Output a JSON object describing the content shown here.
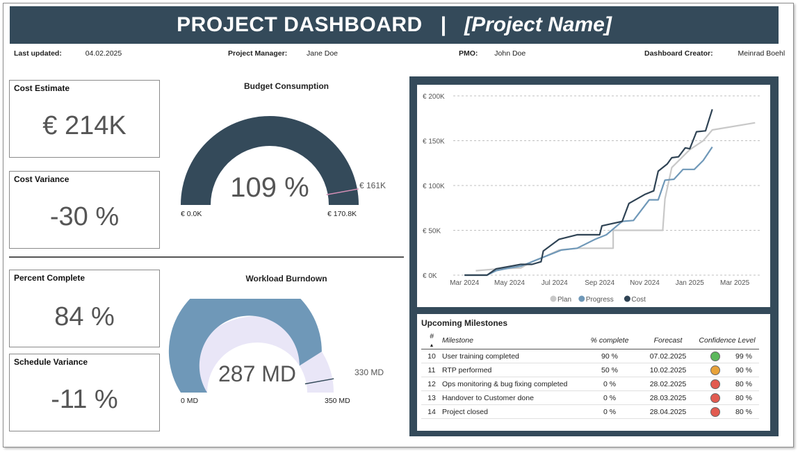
{
  "header": {
    "title": "PROJECT DASHBOARD",
    "separator": "|",
    "project_name": "[Project Name]"
  },
  "meta": {
    "last_updated_label": "Last updated:",
    "last_updated": "04.02.2025",
    "pm_label": "Project Manager:",
    "pm": "Jane Doe",
    "pmo_label": "PMO:",
    "pmo": "John Doe",
    "creator_label": "Dashboard Creator:",
    "creator": "Meinrad Boehl"
  },
  "cards": {
    "cost_estimate": {
      "label": "Cost Estimate",
      "value": "€ 214K"
    },
    "cost_variance": {
      "label": "Cost Variance",
      "value": "-30 %"
    },
    "percent_complete": {
      "label": "Percent Complete",
      "value": "84 %"
    },
    "schedule_variance": {
      "label": "Schedule Variance",
      "value": "-11 %"
    }
  },
  "budget_gauge": {
    "title": "Budget Consumption",
    "value_label": "109 %",
    "min_label": "€ 0.0K",
    "max_label": "€ 170.8K",
    "target_label": "€ 161K",
    "fraction": 1.0,
    "target_fraction": 0.943,
    "fill_color": "#344a5a",
    "target_color": "#d48fb6"
  },
  "workload_gauge": {
    "title": "Workload Burndown",
    "value_label": "287 MD",
    "min_label": "0 MD",
    "max_label": "350 MD",
    "target_label": "330 MD",
    "fraction": 0.82,
    "target_fraction": 0.943,
    "fill_color": "#6f98b8",
    "track_color": "#e9e6f7",
    "target_color": "#344a5a"
  },
  "chart_data": {
    "type": "line",
    "y_ticks": [
      "€ 0K",
      "€ 50K",
      "€ 100K",
      "€ 150K",
      "€ 200K"
    ],
    "ylim": [
      0,
      200
    ],
    "x_ticks": [
      "Mar 2024",
      "May 2024",
      "Jul 2024",
      "Sep 2024",
      "Nov 2024",
      "Jan 2025",
      "Mar 2025"
    ],
    "x_tick_months": [
      0,
      2,
      4,
      6,
      8,
      10,
      12
    ],
    "xlim": [
      -0.5,
      13.2
    ],
    "legend_position": "bottom-center",
    "series": [
      {
        "name": "Plan",
        "color": "#c8c8c8",
        "points": [
          [
            0.5,
            5
          ],
          [
            1.5,
            7
          ],
          [
            2.5,
            8
          ],
          [
            3,
            15
          ],
          [
            3.5,
            20
          ],
          [
            4.2,
            28
          ],
          [
            5,
            30
          ],
          [
            6.6,
            30
          ],
          [
            6.6,
            50
          ],
          [
            8,
            50
          ],
          [
            8.8,
            50
          ],
          [
            8.9,
            85
          ],
          [
            9.2,
            120
          ],
          [
            9.6,
            130
          ],
          [
            10,
            140
          ],
          [
            10.6,
            150
          ],
          [
            11,
            162
          ],
          [
            12.9,
            170
          ]
        ]
      },
      {
        "name": "Progress",
        "color": "#6f98b8",
        "points": [
          [
            0,
            0
          ],
          [
            1,
            0
          ],
          [
            1.4,
            5
          ],
          [
            2,
            8
          ],
          [
            2.5,
            10
          ],
          [
            3,
            15
          ],
          [
            3.5,
            20
          ],
          [
            4.3,
            28
          ],
          [
            5,
            30
          ],
          [
            5.8,
            40
          ],
          [
            6.3,
            45
          ],
          [
            7,
            60
          ],
          [
            7.5,
            61
          ],
          [
            8.2,
            84
          ],
          [
            8.6,
            84
          ],
          [
            8.9,
            106
          ],
          [
            9.3,
            107
          ],
          [
            9.7,
            118
          ],
          [
            10.2,
            118
          ],
          [
            10.6,
            128
          ],
          [
            11,
            143
          ]
        ]
      },
      {
        "name": "Cost",
        "color": "#2f4354",
        "points": [
          [
            0,
            0
          ],
          [
            1,
            0
          ],
          [
            1.4,
            7
          ],
          [
            2.5,
            12
          ],
          [
            3,
            12
          ],
          [
            3.4,
            15
          ],
          [
            3.5,
            27
          ],
          [
            4.2,
            40
          ],
          [
            5,
            45
          ],
          [
            6,
            45
          ],
          [
            6.1,
            55
          ],
          [
            7,
            60
          ],
          [
            7.3,
            80
          ],
          [
            8,
            90
          ],
          [
            8.4,
            94
          ],
          [
            8.6,
            116
          ],
          [
            9,
            124
          ],
          [
            9.2,
            131
          ],
          [
            9.5,
            132
          ],
          [
            9.8,
            142
          ],
          [
            10,
            141
          ],
          [
            10.3,
            160
          ],
          [
            10.7,
            161
          ],
          [
            11,
            185
          ]
        ]
      }
    ]
  },
  "milestones": {
    "title": "Upcoming Milestones",
    "columns": [
      "#",
      "Milestone",
      "% complete",
      "Forecast",
      "Confidence Level"
    ],
    "rows": [
      {
        "num": "10",
        "name": "User training completed",
        "pct": "90 %",
        "forecast": "07.02.2025",
        "color": "#5cb85c",
        "conf": "99 %"
      },
      {
        "num": "11",
        "name": "RTP performed",
        "pct": "50 %",
        "forecast": "10.02.2025",
        "color": "#e8a23a",
        "conf": "90 %"
      },
      {
        "num": "12",
        "name": "Ops monitoring & bug fixing completed",
        "pct": "0 %",
        "forecast": "28.02.2025",
        "color": "#e25b50",
        "conf": "80 %"
      },
      {
        "num": "13",
        "name": "Handover to Customer done",
        "pct": "0 %",
        "forecast": "28.03.2025",
        "color": "#e25b50",
        "conf": "80 %"
      },
      {
        "num": "14",
        "name": "Project closed",
        "pct": "0 %",
        "forecast": "28.04.2025",
        "color": "#e25b50",
        "conf": "80 %"
      }
    ]
  }
}
